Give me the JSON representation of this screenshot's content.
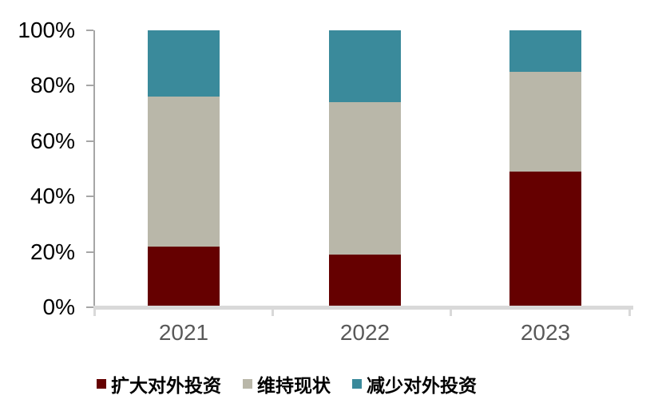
{
  "chart_data": {
    "type": "bar",
    "stacked": true,
    "percent_stacked": true,
    "title": "",
    "xlabel": "",
    "ylabel": "",
    "categories": [
      "2021",
      "2022",
      "2023"
    ],
    "series": [
      {
        "name": "扩大对外投资",
        "color": "#650000",
        "values": [
          22,
          19,
          49
        ]
      },
      {
        "name": "维持现状",
        "color": "#B9B7A9",
        "values": [
          54,
          55,
          36
        ]
      },
      {
        "name": "减少对外投资",
        "color": "#3A8A9B",
        "values": [
          24,
          26,
          15
        ]
      }
    ],
    "ylim": [
      0,
      100
    ],
    "y_ticks": [
      "0%",
      "20%",
      "40%",
      "60%",
      "80%",
      "100%"
    ],
    "y_tick_values": [
      0,
      20,
      40,
      60,
      80,
      100
    ],
    "legend_position": "bottom",
    "grid": false
  },
  "colors": {
    "background": "#FFFFFF",
    "y_axis_line": "#A6A6A6",
    "x_axis_line": "#D9D9D9",
    "y_label_text": "#000000",
    "x_label_text": "#595959",
    "legend_text": "#000000"
  }
}
